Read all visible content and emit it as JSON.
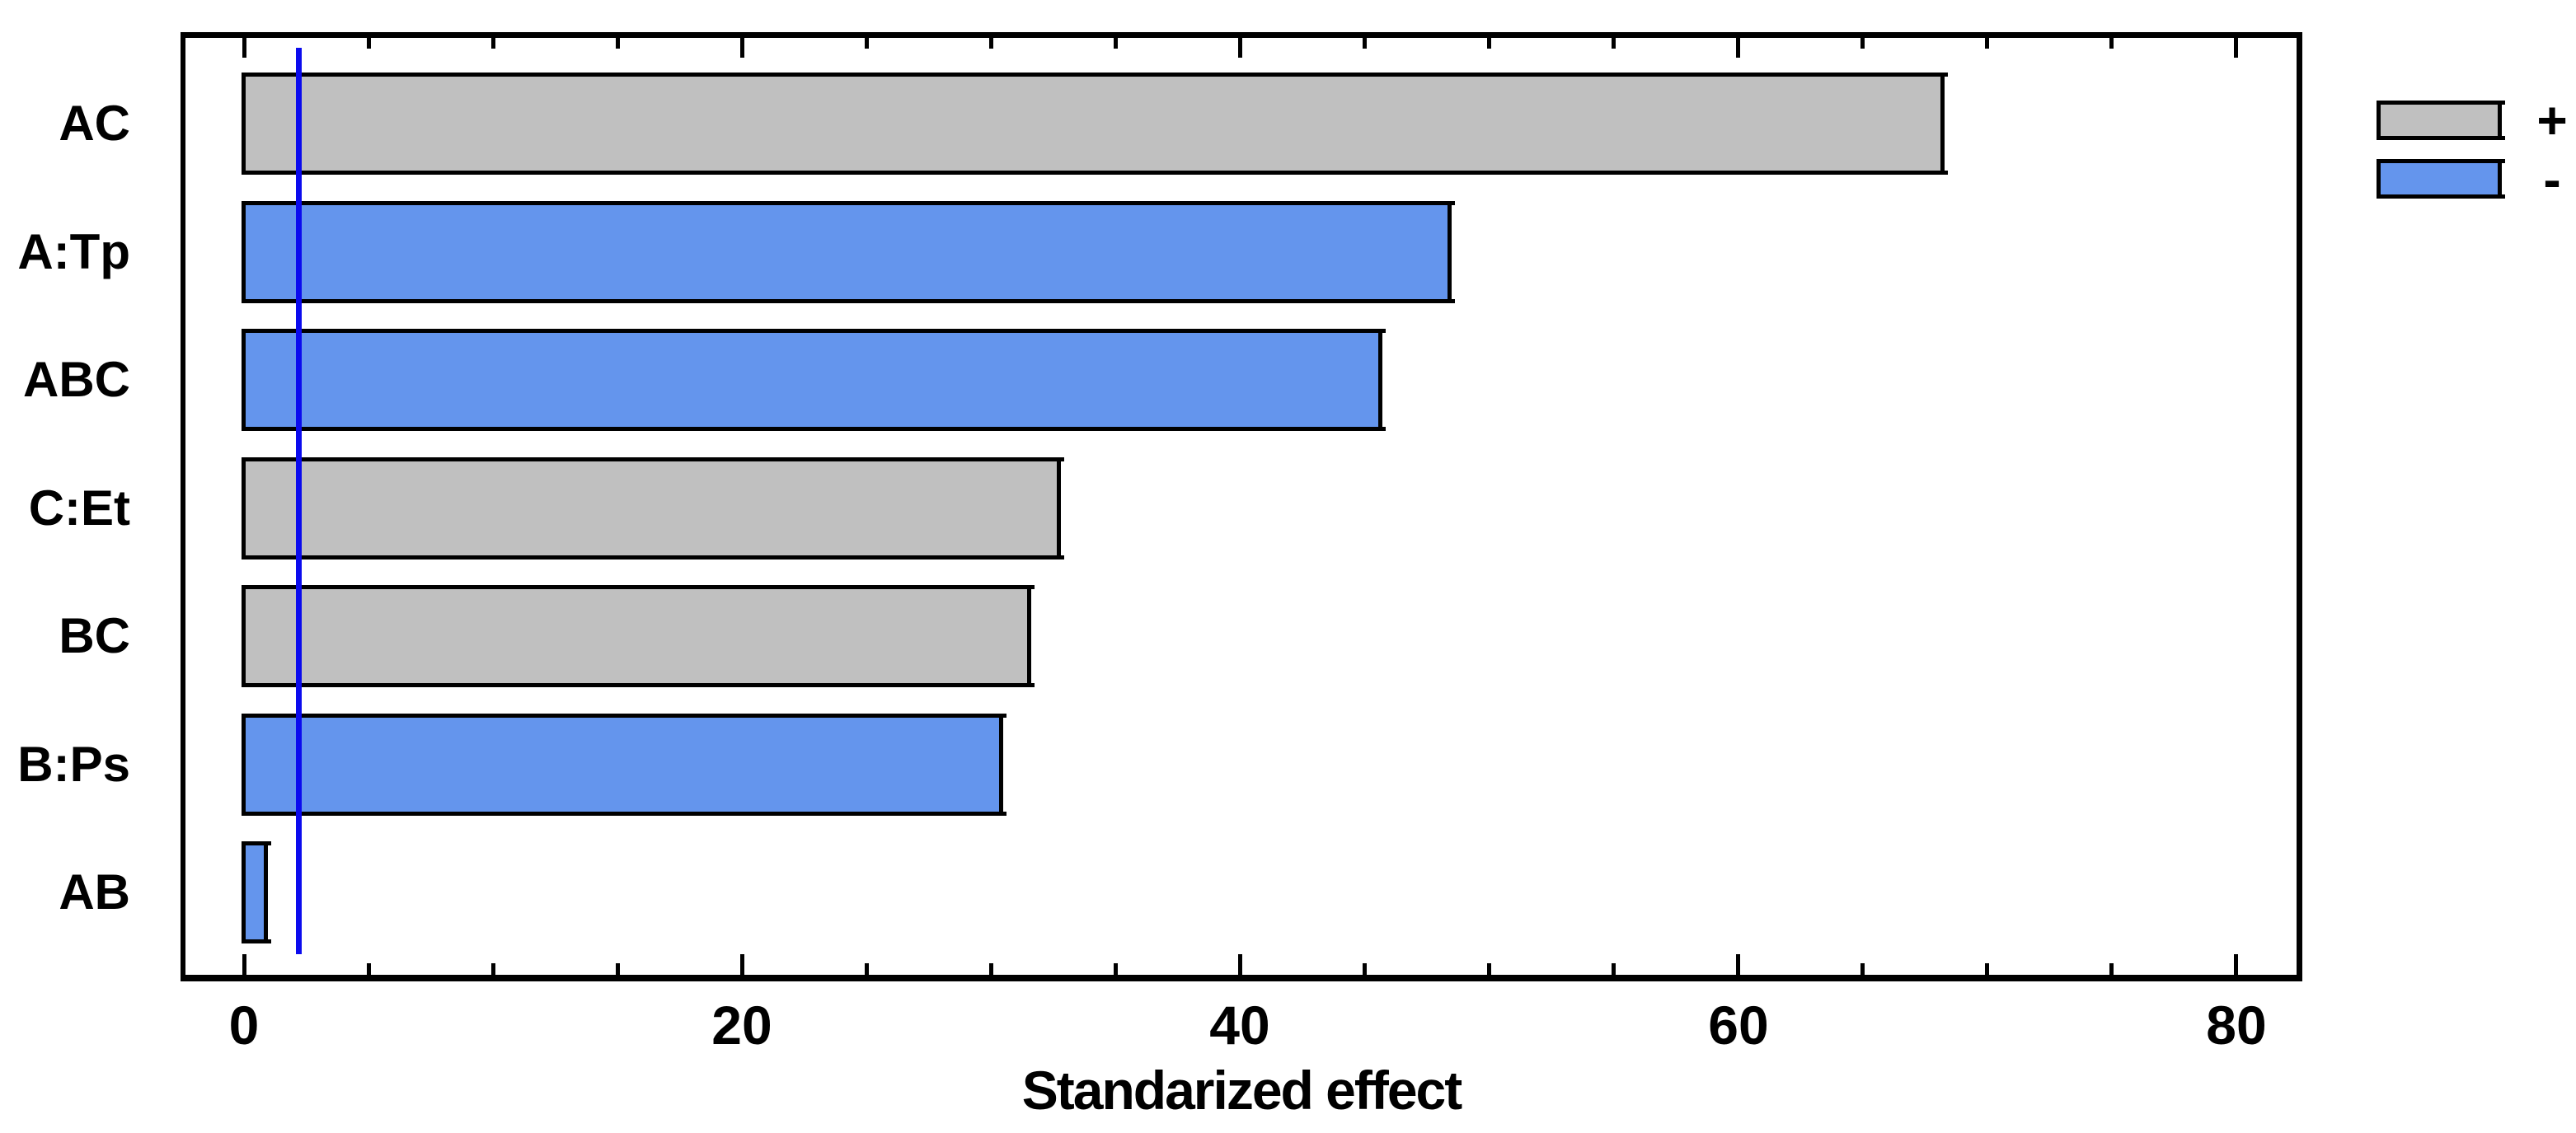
{
  "figure": {
    "background": "#ffffff"
  },
  "chart_data": {
    "type": "bar",
    "orientation": "horizontal",
    "subtype": "pareto-standardized-effects",
    "title": "",
    "xlabel": "Standarized effect",
    "categories": [
      "AC",
      "A:Tp",
      "ABC",
      "C:Et",
      "BC",
      "B:Ps",
      "AB"
    ],
    "values": [
      68.2,
      48.4,
      45.6,
      32.7,
      31.5,
      30.4,
      0.85
    ],
    "signs": [
      "+",
      "-",
      "-",
      "+",
      "+",
      "-",
      "-"
    ],
    "reference_line_x": 2.2,
    "x_ticks": [
      0,
      20,
      40,
      60,
      80
    ],
    "x_minor_tick_step": 5,
    "xlim": [
      -2.45,
      82.5
    ],
    "grid": "off",
    "legend": {
      "position": "top-right",
      "items": [
        {
          "label": "+",
          "color": "#c0c0c0"
        },
        {
          "label": "-",
          "color": "#6495ed"
        }
      ]
    },
    "colors": {
      "positive_bar": "#c0c0c0",
      "negative_bar": "#6495ed",
      "bar_outline": "#000000",
      "reference_line": "#0b0bee",
      "frame": "#000000"
    }
  }
}
